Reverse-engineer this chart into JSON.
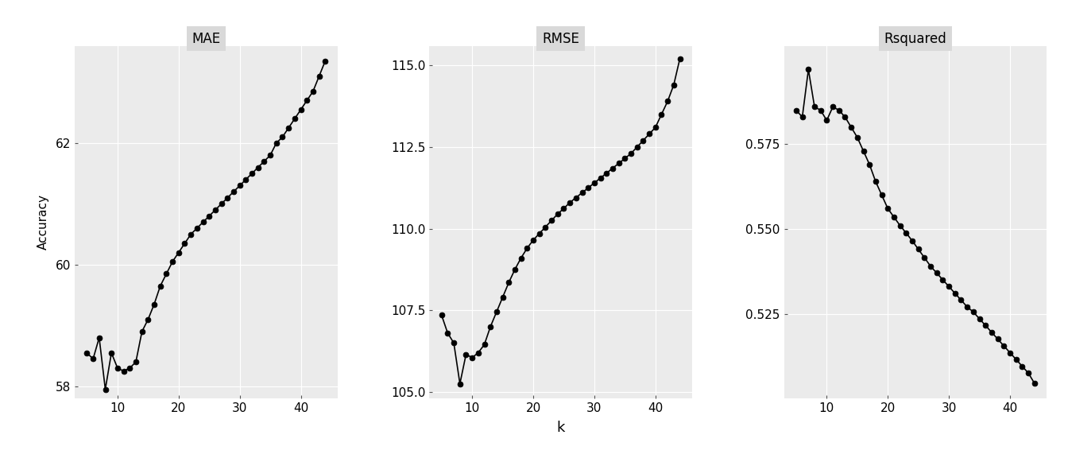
{
  "k": [
    5,
    6,
    7,
    8,
    9,
    10,
    11,
    12,
    13,
    14,
    15,
    16,
    17,
    18,
    19,
    20,
    21,
    22,
    23,
    24,
    25,
    26,
    27,
    28,
    29,
    30,
    31,
    32,
    33,
    34,
    35,
    36,
    37,
    38,
    39,
    40,
    41,
    42,
    43,
    44
  ],
  "mae": [
    58.55,
    58.45,
    58.8,
    57.95,
    58.55,
    58.3,
    58.25,
    58.3,
    58.4,
    58.9,
    59.1,
    59.35,
    59.65,
    59.85,
    60.05,
    60.2,
    60.35,
    60.5,
    60.6,
    60.7,
    60.8,
    60.9,
    61.0,
    61.1,
    61.2,
    61.3,
    61.4,
    61.5,
    61.6,
    61.7,
    61.8,
    62.0,
    62.1,
    62.25,
    62.4,
    62.55,
    62.7,
    62.85,
    63.1,
    63.35
  ],
  "rmse": [
    107.35,
    106.8,
    106.5,
    105.25,
    106.15,
    106.05,
    106.2,
    106.45,
    107.0,
    107.45,
    107.9,
    108.35,
    108.75,
    109.1,
    109.4,
    109.65,
    109.85,
    110.05,
    110.25,
    110.45,
    110.62,
    110.8,
    110.95,
    111.1,
    111.25,
    111.4,
    111.55,
    111.7,
    111.85,
    112.0,
    112.15,
    112.3,
    112.5,
    112.7,
    112.9,
    113.1,
    113.5,
    113.9,
    114.4,
    115.2
  ],
  "rsq": [
    0.585,
    0.583,
    0.597,
    0.586,
    0.585,
    0.582,
    0.586,
    0.585,
    0.583,
    0.58,
    0.577,
    0.573,
    0.569,
    0.564,
    0.56,
    0.556,
    0.5535,
    0.551,
    0.5488,
    0.5465,
    0.544,
    0.5415,
    0.539,
    0.537,
    0.535,
    0.533,
    0.531,
    0.529,
    0.527,
    0.5255,
    0.5235,
    0.5215,
    0.5195,
    0.5175,
    0.5155,
    0.5135,
    0.5115,
    0.5095,
    0.5075,
    0.5045
  ],
  "panel_titles": [
    "MAE",
    "RMSE",
    "Rsquared"
  ],
  "xlabel": "k",
  "ylabel": "Accuracy",
  "mae_ylim": [
    57.8,
    63.6
  ],
  "mae_yticks": [
    58,
    60,
    62
  ],
  "rmse_ylim": [
    104.8,
    115.6
  ],
  "rmse_yticks": [
    105.0,
    107.5,
    110.0,
    112.5,
    115.0
  ],
  "rsq_ylim": [
    0.5,
    0.604
  ],
  "rsq_yticks": [
    0.525,
    0.55,
    0.575
  ],
  "xticks": [
    10,
    20,
    30,
    40
  ],
  "panel_bg": "#EBEBEB",
  "fig_bg": "#FFFFFF",
  "header_bg": "#D9D9D9",
  "line_color": "#000000",
  "marker_color": "#000000",
  "marker_size": 5,
  "line_width": 1.2,
  "font_size": 11,
  "title_font_size": 12,
  "label_font_size": 11
}
